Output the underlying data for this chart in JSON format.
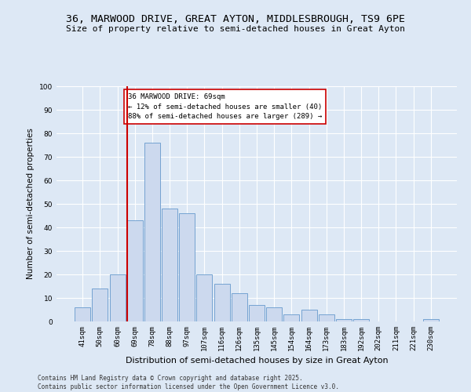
{
  "title1": "36, MARWOOD DRIVE, GREAT AYTON, MIDDLESBROUGH, TS9 6PE",
  "title2": "Size of property relative to semi-detached houses in Great Ayton",
  "xlabel": "Distribution of semi-detached houses by size in Great Ayton",
  "ylabel": "Number of semi-detached properties",
  "categories": [
    "41sqm",
    "50sqm",
    "60sqm",
    "69sqm",
    "78sqm",
    "88sqm",
    "97sqm",
    "107sqm",
    "116sqm",
    "126sqm",
    "135sqm",
    "145sqm",
    "154sqm",
    "164sqm",
    "173sqm",
    "183sqm",
    "192sqm",
    "202sqm",
    "211sqm",
    "221sqm",
    "230sqm"
  ],
  "values": [
    6,
    14,
    20,
    43,
    76,
    48,
    46,
    20,
    16,
    12,
    7,
    6,
    3,
    5,
    3,
    1,
    1,
    0,
    0,
    0,
    1
  ],
  "bar_color": "#ccd9ee",
  "bar_edge_color": "#6699cc",
  "vline_index": 3,
  "annotation_text": "36 MARWOOD DRIVE: 69sqm\n← 12% of semi-detached houses are smaller (40)\n88% of semi-detached houses are larger (289) →",
  "annotation_box_color": "#ffffff",
  "annotation_box_edge": "#cc0000",
  "vline_color": "#cc0000",
  "bg_color": "#dde8f5",
  "grid_color": "#ffffff",
  "ylim": [
    0,
    100
  ],
  "yticks": [
    0,
    10,
    20,
    30,
    40,
    50,
    60,
    70,
    80,
    90,
    100
  ],
  "footer": "Contains HM Land Registry data © Crown copyright and database right 2025.\nContains public sector information licensed under the Open Government Licence v3.0.",
  "title_fontsize": 9.5,
  "subtitle_fontsize": 8,
  "ylabel_fontsize": 7.5,
  "xlabel_fontsize": 8,
  "tick_fontsize": 6.5,
  "annotation_fontsize": 6.5,
  "footer_fontsize": 5.5
}
